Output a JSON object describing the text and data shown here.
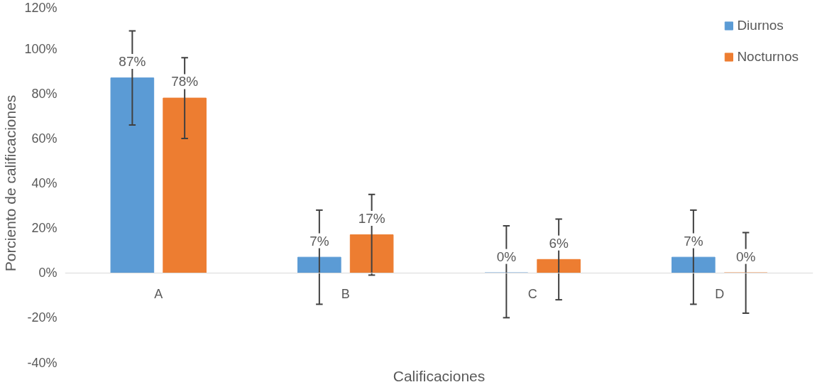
{
  "chart_data": {
    "type": "bar",
    "xlabel": "Calificaciones",
    "ylabel": "Porciento de calificaciones",
    "categories": [
      "A",
      "B",
      "C",
      "D"
    ],
    "series": [
      {
        "name": "Diurnos",
        "color": "#5b9bd5",
        "values": [
          87,
          7,
          0,
          7
        ],
        "value_labels": [
          "87%",
          "7%",
          "0%",
          "7%"
        ],
        "errors": [
          [
            66,
            108
          ],
          [
            -14,
            28
          ],
          [
            -20,
            21
          ],
          [
            -14,
            28
          ]
        ]
      },
      {
        "name": "Nocturnos",
        "color": "#ed7d31",
        "values": [
          78,
          17,
          6,
          0
        ],
        "value_labels": [
          "78%",
          "17%",
          "6%",
          "0%"
        ],
        "errors": [
          [
            60,
            96
          ],
          [
            -1,
            35
          ],
          [
            -12,
            24
          ],
          [
            -18,
            18
          ]
        ]
      }
    ],
    "ylim": [
      -40,
      120
    ],
    "yticks": [
      {
        "value": -40,
        "label": "-40%"
      },
      {
        "value": -20,
        "label": "-20%"
      },
      {
        "value": 0,
        "label": "0%"
      },
      {
        "value": 20,
        "label": "20%"
      },
      {
        "value": 40,
        "label": "40%"
      },
      {
        "value": 60,
        "label": "60%"
      },
      {
        "value": 80,
        "label": "80%"
      },
      {
        "value": 100,
        "label": "100%"
      },
      {
        "value": 120,
        "label": "120%"
      }
    ],
    "grid": false,
    "legend": "top right"
  }
}
